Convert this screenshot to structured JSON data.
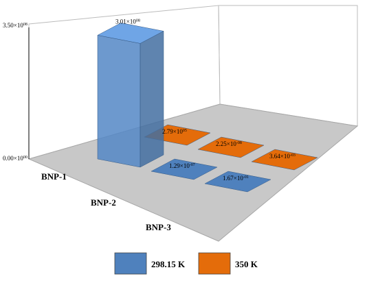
{
  "chart_data": {
    "type": "bar",
    "categories": [
      "BNP-1",
      "BNP-2",
      "BNP-3"
    ],
    "series": [
      {
        "name": "298.15 K",
        "values": [
          301000000.0,
          1.29e-07,
          0.167
        ],
        "labels": [
          "3.01×10^08",
          "1.29×10^-07",
          "1.67×10^-01"
        ],
        "color": "#4f81bd"
      },
      {
        "name": "350 K",
        "values": [
          279000.0,
          2.25e-08,
          0.00364
        ],
        "labels": [
          "2.79×10^05",
          "2.25×10^-08",
          "3.64×10^-03"
        ],
        "color": "#e46c0a"
      }
    ],
    "zlim": [
      0,
      350000000.0
    ],
    "zticks": [
      "0.00×10^00",
      "3.50×10^08"
    ],
    "legend_position": "bottom",
    "style": "3d-column"
  }
}
